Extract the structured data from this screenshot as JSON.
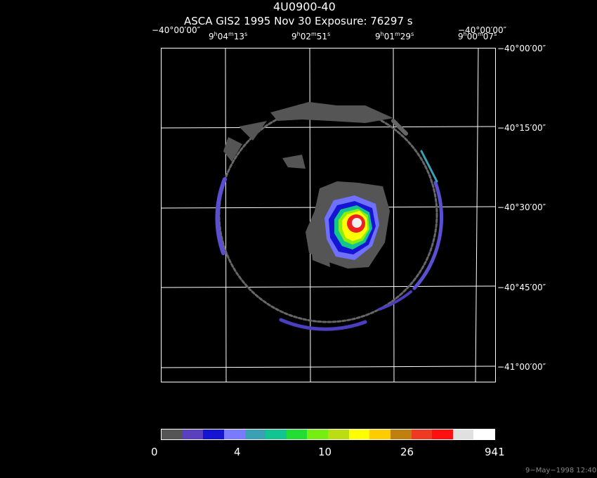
{
  "title": "4U0900-40",
  "subtitle": "ASCA GIS2   1995 Nov 30    Exposure: 76297 s",
  "ra_labels": [
    {
      "h": "9",
      "m": "04",
      "s": "13"
    },
    {
      "h": "9",
      "m": "02",
      "s": "51"
    },
    {
      "h": "9",
      "m": "01",
      "s": "29"
    },
    {
      "h": "9",
      "m": "00",
      "s": "07"
    }
  ],
  "corner_labels": {
    "top_left": "−40°00′00″",
    "top_right": "−40°00′00″"
  },
  "dec_labels": [
    "−40°00′00″",
    "−40°15′00″",
    "−40°30′00″",
    "−40°45′00″",
    "−41°00′00″"
  ],
  "colorbar": {
    "colors": [
      "#555555",
      "#5a3fbf",
      "#1414d2",
      "#7a7aff",
      "#3aa0b4",
      "#11c490",
      "#22dd33",
      "#77ee11",
      "#bbdd11",
      "#ffff00",
      "#ffcc00",
      "#c08010",
      "#ee3a22",
      "#ff1010",
      "#e0e0e0",
      "#ffffff"
    ],
    "labels": [
      "0",
      "4",
      "10",
      "26",
      "941"
    ]
  },
  "footer": "9−May−1998 12:40"
}
